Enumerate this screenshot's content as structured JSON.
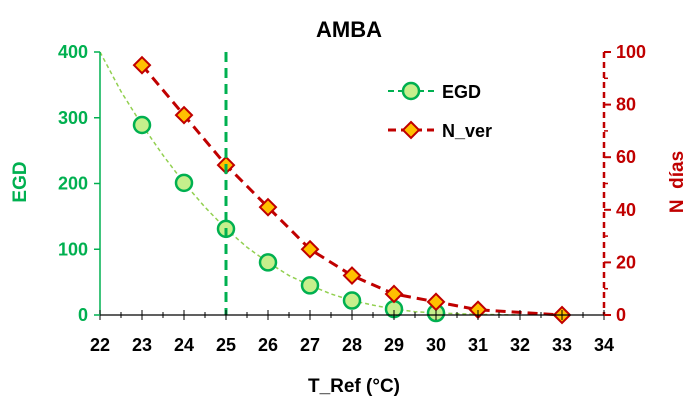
{
  "chart_data": {
    "type": "line",
    "title": "AMBA",
    "xlabel": "T_Ref (°C)",
    "ylabel_left": "EGD",
    "ylabel_right": "N  días",
    "xlim": [
      22,
      34
    ],
    "ylim_left": [
      0,
      400
    ],
    "ylim_right": [
      0,
      100
    ],
    "x_ticks": [
      "22",
      "23",
      "24",
      "25",
      "26",
      "27",
      "28",
      "29",
      "30",
      "31",
      "32",
      "33",
      "34"
    ],
    "y_left_ticks": [
      "0",
      "100",
      "200",
      "300",
      "400"
    ],
    "y_right_ticks": [
      "0",
      "20",
      "40",
      "60",
      "80",
      "100"
    ],
    "reference_line_x": 25,
    "legend_position": "top-right",
    "grid": false,
    "series": [
      {
        "name": "EGD",
        "axis": "left",
        "color": "#00b050",
        "marker_fill": "#c6ef8c",
        "marker": "circle",
        "line_style": "dashed",
        "x": [
          23,
          24,
          25,
          26,
          27,
          28,
          29,
          30
        ],
        "values": [
          289,
          201,
          131,
          80,
          45,
          22,
          9,
          3
        ]
      },
      {
        "name": "N_ver",
        "axis": "right",
        "color": "#c00000",
        "marker_fill": "#ffc000",
        "marker": "diamond",
        "line_style": "dashed",
        "x": [
          23,
          24,
          25,
          26,
          27,
          28,
          29,
          30,
          31,
          33
        ],
        "values": [
          95,
          76,
          57,
          41,
          25,
          15,
          8,
          5,
          2,
          0
        ]
      }
    ],
    "fit_curve": {
      "axis": "left",
      "color": "#92d050",
      "x": [
        22,
        22.5,
        23,
        23.5,
        24,
        24.5,
        25,
        25.5,
        26,
        26.5,
        27,
        27.5,
        28,
        28.5,
        29,
        29.5,
        30,
        30.5,
        31,
        31.5,
        32
      ],
      "values": [
        400,
        340,
        289,
        243,
        201,
        164,
        131,
        103,
        80,
        60,
        45,
        32,
        22,
        15,
        9,
        5,
        3,
        2,
        1,
        0.5,
        0
      ]
    }
  }
}
